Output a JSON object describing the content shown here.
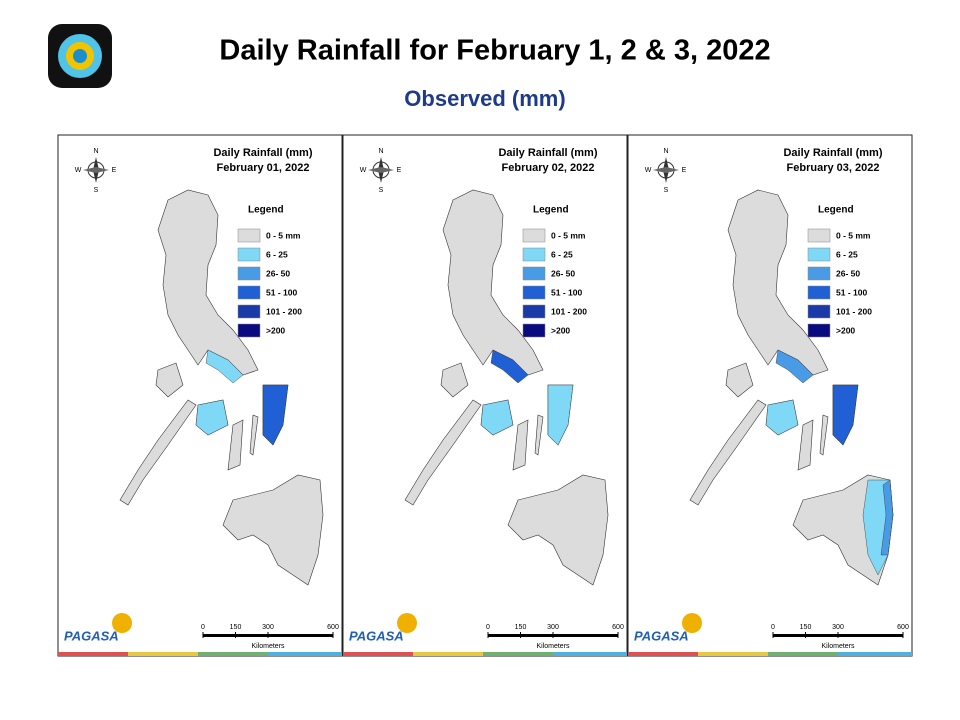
{
  "header": {
    "title": "Daily Rainfall for February 1, 2 & 3, 2022",
    "subtitle": "Observed (mm)"
  },
  "compass": {
    "n": "N",
    "s": "S",
    "e": "E",
    "w": "W"
  },
  "panels": [
    {
      "title": "Daily Rainfall (mm)",
      "date": "February 01, 2022",
      "legend": {
        "title": "Legend",
        "items": [
          {
            "label": "0 - 5 mm",
            "color": "#dcdcdc"
          },
          {
            "label": "6 - 25",
            "color": "#7fd8f6"
          },
          {
            "label": "26- 50",
            "color": "#4a9be6"
          },
          {
            "label": "51 - 100",
            "color": "#2060d4"
          },
          {
            "label": "101 - 200",
            "color": "#1a3aa8"
          },
          {
            "label": ">200",
            "color": "#0b0b80"
          }
        ]
      },
      "scale": {
        "ticks": [
          0,
          150,
          300,
          600
        ],
        "unit": "Kilometers"
      },
      "logo": "PAGASA"
    },
    {
      "title": "Daily Rainfall (mm)",
      "date": "February 02, 2022",
      "legend": {
        "title": "Legend",
        "items": [
          {
            "label": "0 - 5 mm",
            "color": "#dcdcdc"
          },
          {
            "label": "6 - 25",
            "color": "#7fd8f6"
          },
          {
            "label": "26- 50",
            "color": "#4a9be6"
          },
          {
            "label": "51 - 100",
            "color": "#2060d4"
          },
          {
            "label": "101 - 200",
            "color": "#1a3aa8"
          },
          {
            "label": ">200",
            "color": "#0b0b80"
          }
        ]
      },
      "scale": {
        "ticks": [
          0,
          150,
          300,
          600
        ],
        "unit": "Kilometers"
      },
      "logo": "PAGASA"
    },
    {
      "title": "Daily Rainfall (mm)",
      "date": "February 03, 2022",
      "legend": {
        "title": "Legend",
        "items": [
          {
            "label": "0 - 5 mm",
            "color": "#dcdcdc"
          },
          {
            "label": "6 - 25",
            "color": "#7fd8f6"
          },
          {
            "label": "26- 50",
            "color": "#4a9be6"
          },
          {
            "label": "51 - 100",
            "color": "#2060d4"
          },
          {
            "label": "101 - 200",
            "color": "#1a3aa8"
          },
          {
            "label": ">200",
            "color": "#0b0b80"
          }
        ]
      },
      "scale": {
        "ticks": [
          0,
          150,
          300,
          600
        ],
        "unit": "Kilometers"
      },
      "logo": "PAGASA"
    }
  ]
}
